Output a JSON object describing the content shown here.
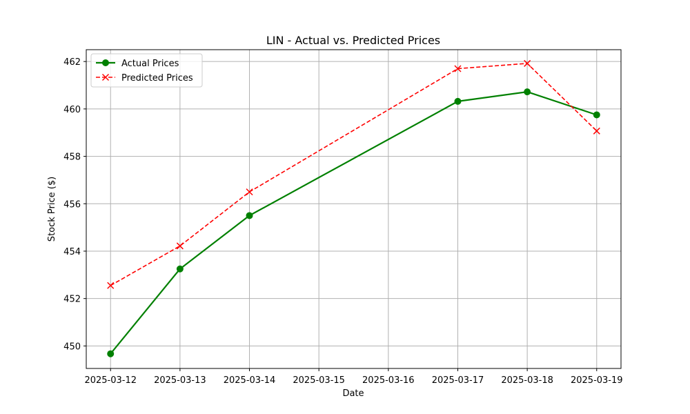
{
  "chart_data": {
    "type": "line",
    "title": "LIN - Actual vs. Predicted Prices",
    "xlabel": "Date",
    "ylabel": "Stock Price ($)",
    "x": [
      "2025-03-12",
      "2025-03-13",
      "2025-03-14",
      "2025-03-17",
      "2025-03-18",
      "2025-03-19"
    ],
    "x_ticks": [
      "2025-03-12",
      "2025-03-13",
      "2025-03-14",
      "2025-03-15",
      "2025-03-16",
      "2025-03-17",
      "2025-03-18",
      "2025-03-19"
    ],
    "y_ticks": [
      450,
      452,
      454,
      456,
      458,
      460,
      462
    ],
    "xlim": [
      "2025-03-11",
      "2025-03-19"
    ],
    "ylim": [
      449.05,
      462.5
    ],
    "grid": true,
    "legend_position": "top-left",
    "series": [
      {
        "name": "Actual Prices",
        "color": "#008000",
        "marker": "circle",
        "line_style": "solid",
        "values": [
          449.67,
          453.25,
          455.5,
          460.32,
          460.72,
          459.75
        ]
      },
      {
        "name": "Predicted Prices",
        "color": "#ff0000",
        "marker": "x",
        "line_style": "dashed",
        "values": [
          452.55,
          454.22,
          456.5,
          461.7,
          461.92,
          459.07
        ]
      }
    ]
  }
}
